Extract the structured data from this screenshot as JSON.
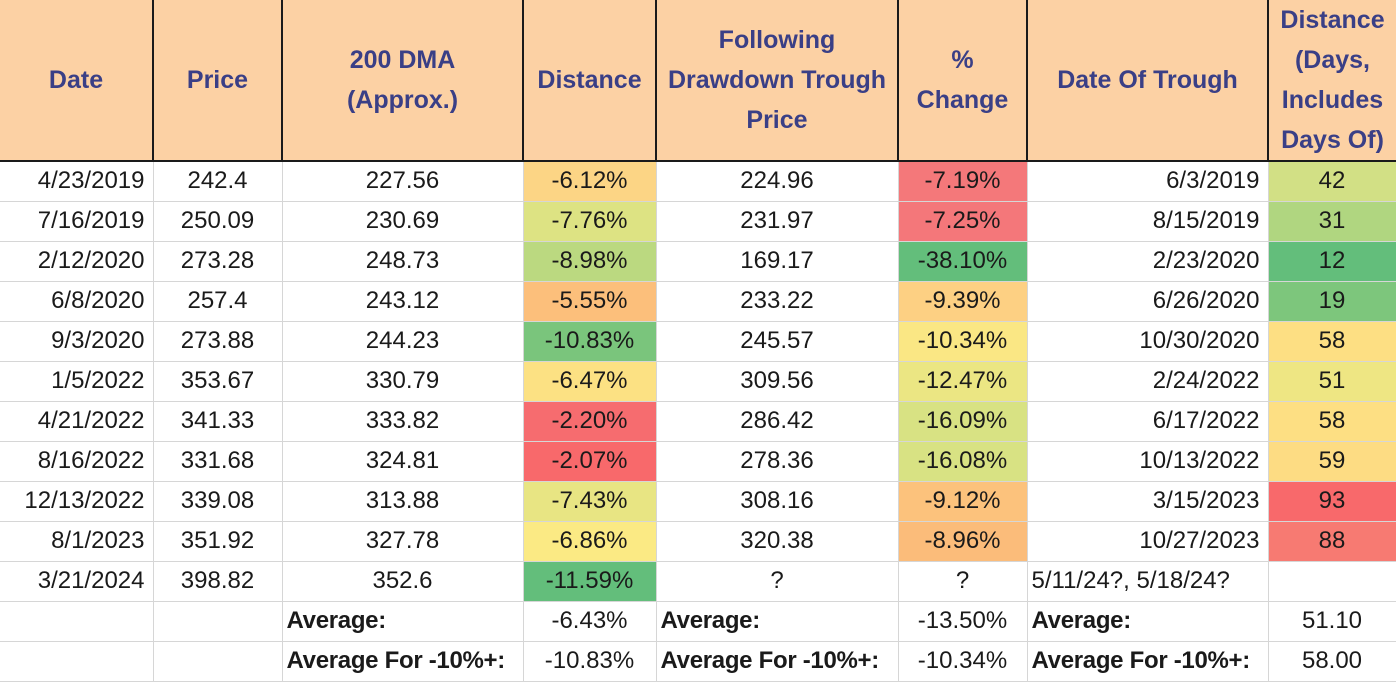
{
  "table": {
    "headers": [
      "Date",
      "Price",
      "200 DMA (Approx.)",
      "Distance",
      "Following Drawdown Trough Price",
      "% Change",
      "Date Of Trough",
      "Distance (Days, Includes Days Of)"
    ],
    "header_lines": [
      [
        "Date"
      ],
      [
        "Price"
      ],
      [
        "200 DMA",
        "(Approx.)"
      ],
      [
        "Distance"
      ],
      [
        "Following",
        "Drawdown Trough",
        "Price"
      ],
      [
        "%",
        "Change"
      ],
      [
        "Date Of Trough"
      ],
      [
        "Distance",
        "(Days,",
        "Includes",
        "Days Of)"
      ]
    ],
    "rows": [
      {
        "date": "4/23/2019",
        "price": "242.4",
        "dma": "227.56",
        "distance": "-6.12%",
        "trough_price": "224.96",
        "pct_change": "-7.19%",
        "trough_date": "6/3/2019",
        "days": "42",
        "colors": {
          "distance": "#fcd585",
          "pct_change": "#f4787a",
          "days": "#d2e085"
        }
      },
      {
        "date": "7/16/2019",
        "price": "250.09",
        "dma": "230.69",
        "distance": "-7.76%",
        "trough_price": "231.97",
        "pct_change": "-7.25%",
        "trough_date": "8/15/2019",
        "days": "31",
        "colors": {
          "distance": "#dde383",
          "pct_change": "#f4777a",
          "days": "#b0d680"
        }
      },
      {
        "date": "2/12/2020",
        "price": "273.28",
        "dma": "248.73",
        "distance": "-8.98%",
        "trough_price": "169.17",
        "pct_change": "-38.10%",
        "trough_date": "2/23/2020",
        "days": "12",
        "colors": {
          "distance": "#bbd980",
          "pct_change": "#63be7b",
          "days": "#63be7b"
        }
      },
      {
        "date": "6/8/2020",
        "price": "257.4",
        "dma": "243.12",
        "distance": "-5.55%",
        "trough_price": "233.22",
        "pct_change": "-9.39%",
        "trough_date": "6/26/2020",
        "days": "19",
        "colors": {
          "distance": "#fcbf7b",
          "pct_change": "#fdd083",
          "days": "#7dc67c"
        }
      },
      {
        "date": "9/3/2020",
        "price": "273.88",
        "dma": "244.23",
        "distance": "-10.83%",
        "trough_price": "245.57",
        "pct_change": "-10.34%",
        "trough_date": "10/30/2020",
        "days": "58",
        "colors": {
          "distance": "#7ac57c",
          "pct_change": "#fae784",
          "days": "#fddf83"
        }
      },
      {
        "date": "1/5/2022",
        "price": "353.67",
        "dma": "330.79",
        "distance": "-6.47%",
        "trough_price": "309.56",
        "pct_change": "-12.47%",
        "trough_date": "2/24/2022",
        "days": "51",
        "colors": {
          "distance": "#fce183",
          "pct_change": "#ebe683",
          "days": "#eee683"
        }
      },
      {
        "date": "4/21/2022",
        "price": "341.33",
        "dma": "333.82",
        "distance": "-2.20%",
        "trough_price": "286.42",
        "pct_change": "-16.09%",
        "trough_date": "6/17/2022",
        "days": "58",
        "colors": {
          "distance": "#f66c6f",
          "pct_change": "#d8e283",
          "days": "#fddf83"
        }
      },
      {
        "date": "8/16/2022",
        "price": "331.68",
        "dma": "324.81",
        "distance": "-2.07%",
        "trough_price": "278.36",
        "pct_change": "-16.08%",
        "trough_date": "10/13/2022",
        "days": "59",
        "colors": {
          "distance": "#f8696b",
          "pct_change": "#d8e283",
          "days": "#fddc83"
        }
      },
      {
        "date": "12/13/2022",
        "price": "339.08",
        "dma": "313.88",
        "distance": "-7.43%",
        "trough_price": "308.16",
        "pct_change": "-9.12%",
        "trough_date": "3/15/2023",
        "days": "93",
        "colors": {
          "distance": "#e8e583",
          "pct_change": "#fcc27c",
          "days": "#f8696b"
        }
      },
      {
        "date": "8/1/2023",
        "price": "351.92",
        "dma": "327.78",
        "distance": "-6.86%",
        "trough_price": "320.38",
        "pct_change": "-8.96%",
        "trough_date": "10/27/2023",
        "days": "88",
        "colors": {
          "distance": "#fbea84",
          "pct_change": "#fbbc7a",
          "days": "#f77a72"
        }
      },
      {
        "date": "3/21/2024",
        "price": "398.82",
        "dma": "352.6",
        "distance": "-11.59%",
        "trough_price": "?",
        "pct_change": "?",
        "trough_date": "5/11/24?, 5/18/24?",
        "days": "",
        "colors": {
          "distance": "#63be7b",
          "pct_change": "#ffffff",
          "days": "#ffffff"
        }
      }
    ],
    "summary": {
      "average_label": "Average:",
      "average_10_label": "Average For -10%+:",
      "avg_distance": "-6.43%",
      "avg_pct_change": "-13.50%",
      "avg_days": "51.10",
      "avg10_distance": "-10.83%",
      "avg10_pct_change": "-10.34%",
      "avg10_days": "58.00"
    }
  },
  "colors": {
    "header_bg": "#fcd1a4",
    "header_text": "#3a3f86",
    "grid": "#d6d6d6"
  }
}
